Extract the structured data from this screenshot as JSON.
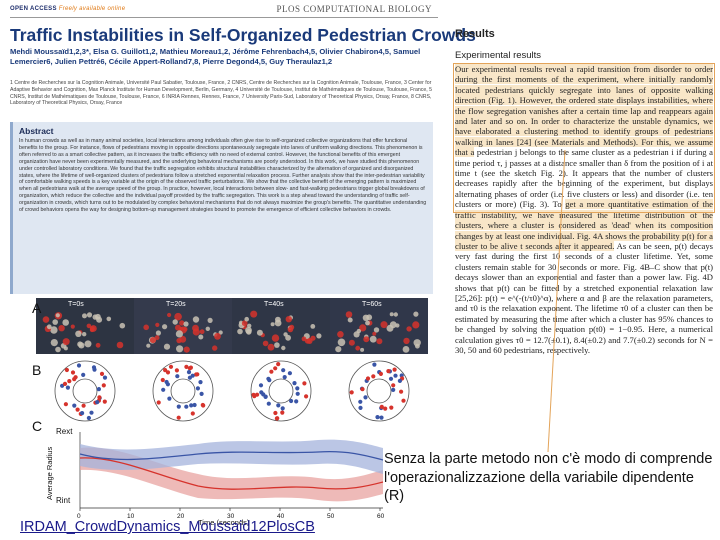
{
  "header": {
    "open_access": "OPEN ACCESS",
    "open_access_sub": "Freely available online",
    "journal": "PLOS COMPUTATIONAL BIOLOGY"
  },
  "paper": {
    "title": "Traffic Instabilities in Self-Organized Pedestrian Crowds",
    "authors": "Mehdi Moussaïd1,2,3*, Elsa G. Guillot1,2, Mathieu Moreau1,2, Jérôme Fehrenbach4,5, Olivier Chabiron4,5, Samuel Lemercier6, Julien Pettré6, Cécile Appert-Rolland7,8, Pierre Degond4,5, Guy Theraulaz1,2",
    "affiliations": "1 Centre de Recherches sur la Cognition Animale, Université Paul Sabatier, Toulouse, France, 2 CNRS, Centre de Recherches sur la Cognition Animale, Toulouse, France, 3 Center for Adaptive Behavior and Cognition, Max Planck Institute for Human Development, Berlin, Germany, 4 Université de Toulouse, Institut de Mathématiques de Toulouse, Toulouse, France, 5 CNRS, Institut de Mathématiques de Toulouse, Toulouse, France, 6 INRIA Rennes, Rennes, France, 7 University Paris-Sud, Laboratory of Theoretical Physics, Orsay, France, 8 CNRS, Laboratory of Theoretical Physics, Orsay, France",
    "abstract_title": "Abstract",
    "abstract": "In human crowds as well as in many animal societies, local interactions among individuals often give rise to self-organized collective organizations that offer functional benefits to the group. For instance, flows of pedestrians moving in opposite directions spontaneously segregate into lanes of uniform walking directions. This phenomenon is often referred to as a smart collective pattern, as it increases the traffic efficiency with no need of external control. However, the functional benefits of this emergent organization have never been experimentally measured, and the underlying behavioral mechanisms are poorly understood. In this work, we have studied this phenomenon under controlled laboratory conditions. We found that the traffic segregation exhibits structural instabilities characterized by the alternation of organized and disorganized states, where the lifetime of well-organized clusters of pedestrians follow a stretched exponential relaxation process. Further analysis show that the inter-pedestrian variability of comfortable walking speeds is a key variable at the origin of the observed traffic perturbations. We show that the collective benefit of the emerging pattern is maximized when all pedestrians walk at the average speed of the group. In practice, however, local interactions between slow- and fast-walking pedestrians trigger global breakdowns of organization, which reduce the collective and the individual payoff provided by the traffic segregation. This work is a step ahead toward the understanding of traffic self-organization in crowds, which turns out to be modulated by complex behavioral mechanisms that do not always maximize the group's benefits. The quantitative understanding of crowd behaviors opens the way for designing bottom-up management strategies bound to promote the emergence of efficient collective behaviors in crowds."
  },
  "figure": {
    "panel_a": "A",
    "panel_b": "B",
    "panel_c": "C",
    "times": [
      "T=0s",
      "T=20s",
      "T=40s",
      "T=60s"
    ],
    "rext": "Rext",
    "rint": "Rint",
    "ylabel": "Average Radius",
    "xlabel": "Time (seconds)",
    "xticks": [
      "0",
      "10",
      "20",
      "30",
      "40",
      "50",
      "60"
    ],
    "colors": {
      "red": "#d6332c",
      "blue": "#3a55a6"
    }
  },
  "results": {
    "heading": "Results",
    "subheading": "Experimental results",
    "text_highlighted": "Our experimental results reveal a rapid transition from disorder to order during the first moments of the experiment, where initially randomly located pedestrians quickly segregate into lanes of opposite walking direction (Fig. 1). However, the ordered state displays instabilities, where the flow segregation vanishes after a certain time lap and reappears again and later and so on. In order to characterize the unstable dynamics, we have elaborated a clustering method to identify groups of pedestrians walking in lanes [24] (see Materials and Methods). For this, we assume that a",
    "text_mid": "pedestrian j belongs to the same cluster as a pedestrian i if during a time period τ, j passes at a distance smaller than δ from the position of i at time t (see the sketch Fig. 2). It appears that the number of clusters decreases rapidly after the beginning of the experiment, but displays alternating phases of order (i.e. five clusters or less) and disorder (i.e. ten clusters or more) (Fig. 3). To",
    "text_highlighted2": "get a more quantitative estimation of the traffic instability, we have measured the lifetime distribution of the clusters, where a cluster is considered as 'dead' when its composition changes by at least one individual. Fig. 4A shows the probability p(t) for a cluster to be alive t seconds after it appeared.",
    "text_end": "As can be seen, p(t) decays very fast during the first 10 seconds of a cluster lifetime. Yet, some clusters remain stable for 30 seconds or more. Fig. 4B–C show that p(t) decays slower than an exponential and faster than a power law. Fig. 4D shows that p(t) can be fitted by a stretched exponential relaxation law [25,26]: p(t) = e^(-(t/τ0)^α), where α and β are the relaxation parameters, and τ0 is the relaxation exponent. The lifetime τ0 of a cluster can then be estimated by measuring the time after which a cluster has 95% chances to be changed by solving the equation p(t0) = 1−0.95. Here, a numerical calculation gives τ0 = 12.7(±0.1), 8.4(±0.2) and 7.7(±0.2) seconds for N = 30, 50 and 60 pedestrians, respectively."
  },
  "overlay": {
    "note": "Senza la parte metodo non c'è modo di comprende l'operazionalizzazione della variabile dipendente (R)",
    "link": "IRDAM_CrowdDynamics_Moussaid12PlosCB"
  }
}
